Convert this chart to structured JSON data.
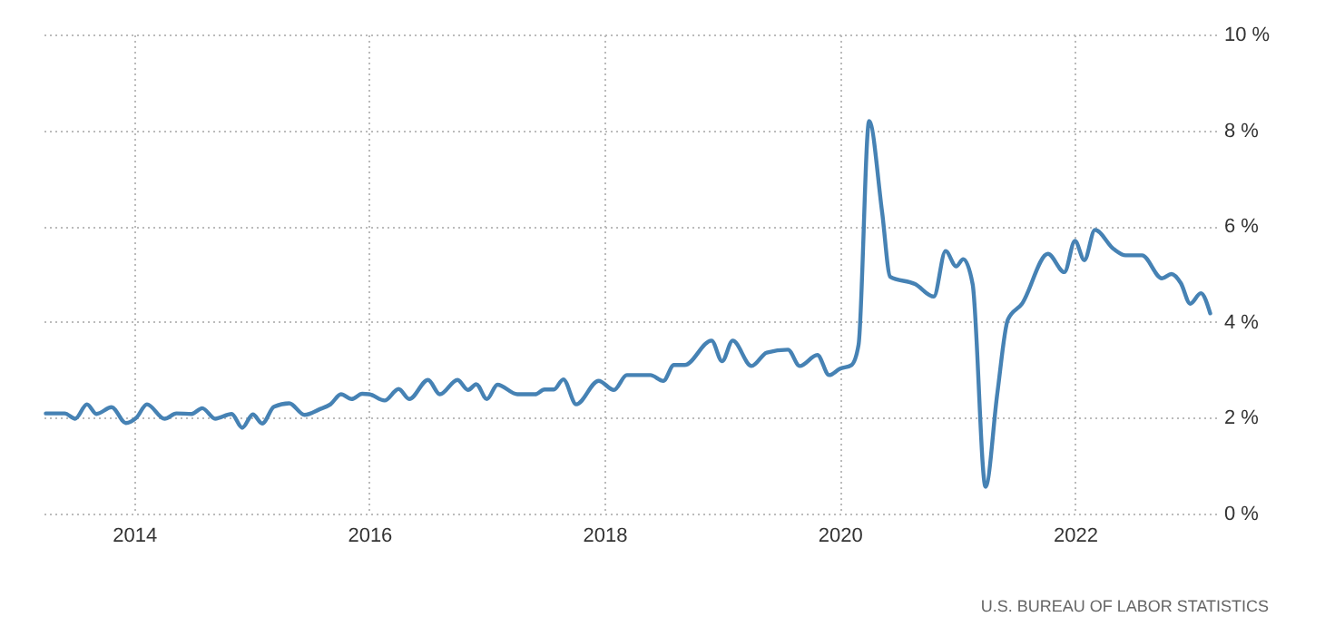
{
  "chart_data": {
    "type": "line",
    "annotations": [
      "U.S. BUREAU OF LABOR STATISTICS"
    ],
    "x": [
      2013.25,
      2013.41,
      2013.5,
      2013.6,
      2013.68,
      2013.81,
      2013.93,
      2014.02,
      2014.11,
      2014.26,
      2014.36,
      2014.49,
      2014.58,
      2014.69,
      2014.83,
      2014.92,
      2015.01,
      2015.09,
      2015.19,
      2015.32,
      2015.45,
      2015.58,
      2015.67,
      2015.76,
      2015.85,
      2015.94,
      2016.0,
      2016.13,
      2016.25,
      2016.34,
      2016.5,
      2016.6,
      2016.75,
      2016.84,
      2016.91,
      2017.0,
      2017.09,
      2017.26,
      2017.41,
      2017.49,
      2017.57,
      2017.65,
      2017.76,
      2017.95,
      2018.08,
      2018.19,
      2018.39,
      2018.5,
      2018.59,
      2018.68,
      2018.91,
      2019.0,
      2019.09,
      2019.25,
      2019.38,
      2019.56,
      2019.66,
      2019.81,
      2019.91,
      2020.0,
      2020.1,
      2020.16,
      2020.25,
      2020.36,
      2020.43,
      2020.64,
      2020.8,
      2020.9,
      2020.99,
      2021.05,
      2021.13,
      2021.24,
      2021.34,
      2021.43,
      2021.55,
      2021.77,
      2021.91,
      2022.0,
      2022.08,
      2022.17,
      2022.33,
      2022.43,
      2022.57,
      2022.74,
      2022.82,
      2022.9,
      2022.98,
      2023.07,
      2023.15
    ],
    "series": [
      {
        "color": "#4682b4",
        "values": [
          2.09,
          2.09,
          1.98,
          2.28,
          2.08,
          2.22,
          1.89,
          2.0,
          2.28,
          1.98,
          2.09,
          2.08,
          2.2,
          1.98,
          2.08,
          1.79,
          2.07,
          1.88,
          2.23,
          2.3,
          2.06,
          2.18,
          2.28,
          2.49,
          2.39,
          2.5,
          2.49,
          2.36,
          2.6,
          2.39,
          2.79,
          2.49,
          2.79,
          2.58,
          2.7,
          2.39,
          2.69,
          2.49,
          2.49,
          2.59,
          2.59,
          2.8,
          2.28,
          2.77,
          2.58,
          2.89,
          2.89,
          2.77,
          3.1,
          3.1,
          3.61,
          3.18,
          3.61,
          3.08,
          3.36,
          3.42,
          3.08,
          3.31,
          2.89,
          3.02,
          3.1,
          3.52,
          8.19,
          6.3,
          4.94,
          4.79,
          4.53,
          5.48,
          5.16,
          5.31,
          4.79,
          0.56,
          2.51,
          4.05,
          4.38,
          5.42,
          5.04,
          5.69,
          5.29,
          5.92,
          5.52,
          5.39,
          5.39,
          4.91,
          5.0,
          4.81,
          4.38,
          4.6,
          4.18
        ]
      }
    ],
    "xlim": [
      2013.2,
      2023.2
    ],
    "xticks": [
      2014,
      2016,
      2018,
      2020,
      2022
    ],
    "ylim": [
      0,
      10
    ],
    "yticks": [
      {
        "value": 0,
        "label": "0 %"
      },
      {
        "value": 2,
        "label": "2 %"
      },
      {
        "value": 4,
        "label": "4 %"
      },
      {
        "value": 6,
        "label": "6 %"
      },
      {
        "value": 8,
        "label": "8 %"
      },
      {
        "value": 10,
        "label": "10 %"
      }
    ],
    "grid": true,
    "line_style": "solid",
    "marker": "none"
  }
}
